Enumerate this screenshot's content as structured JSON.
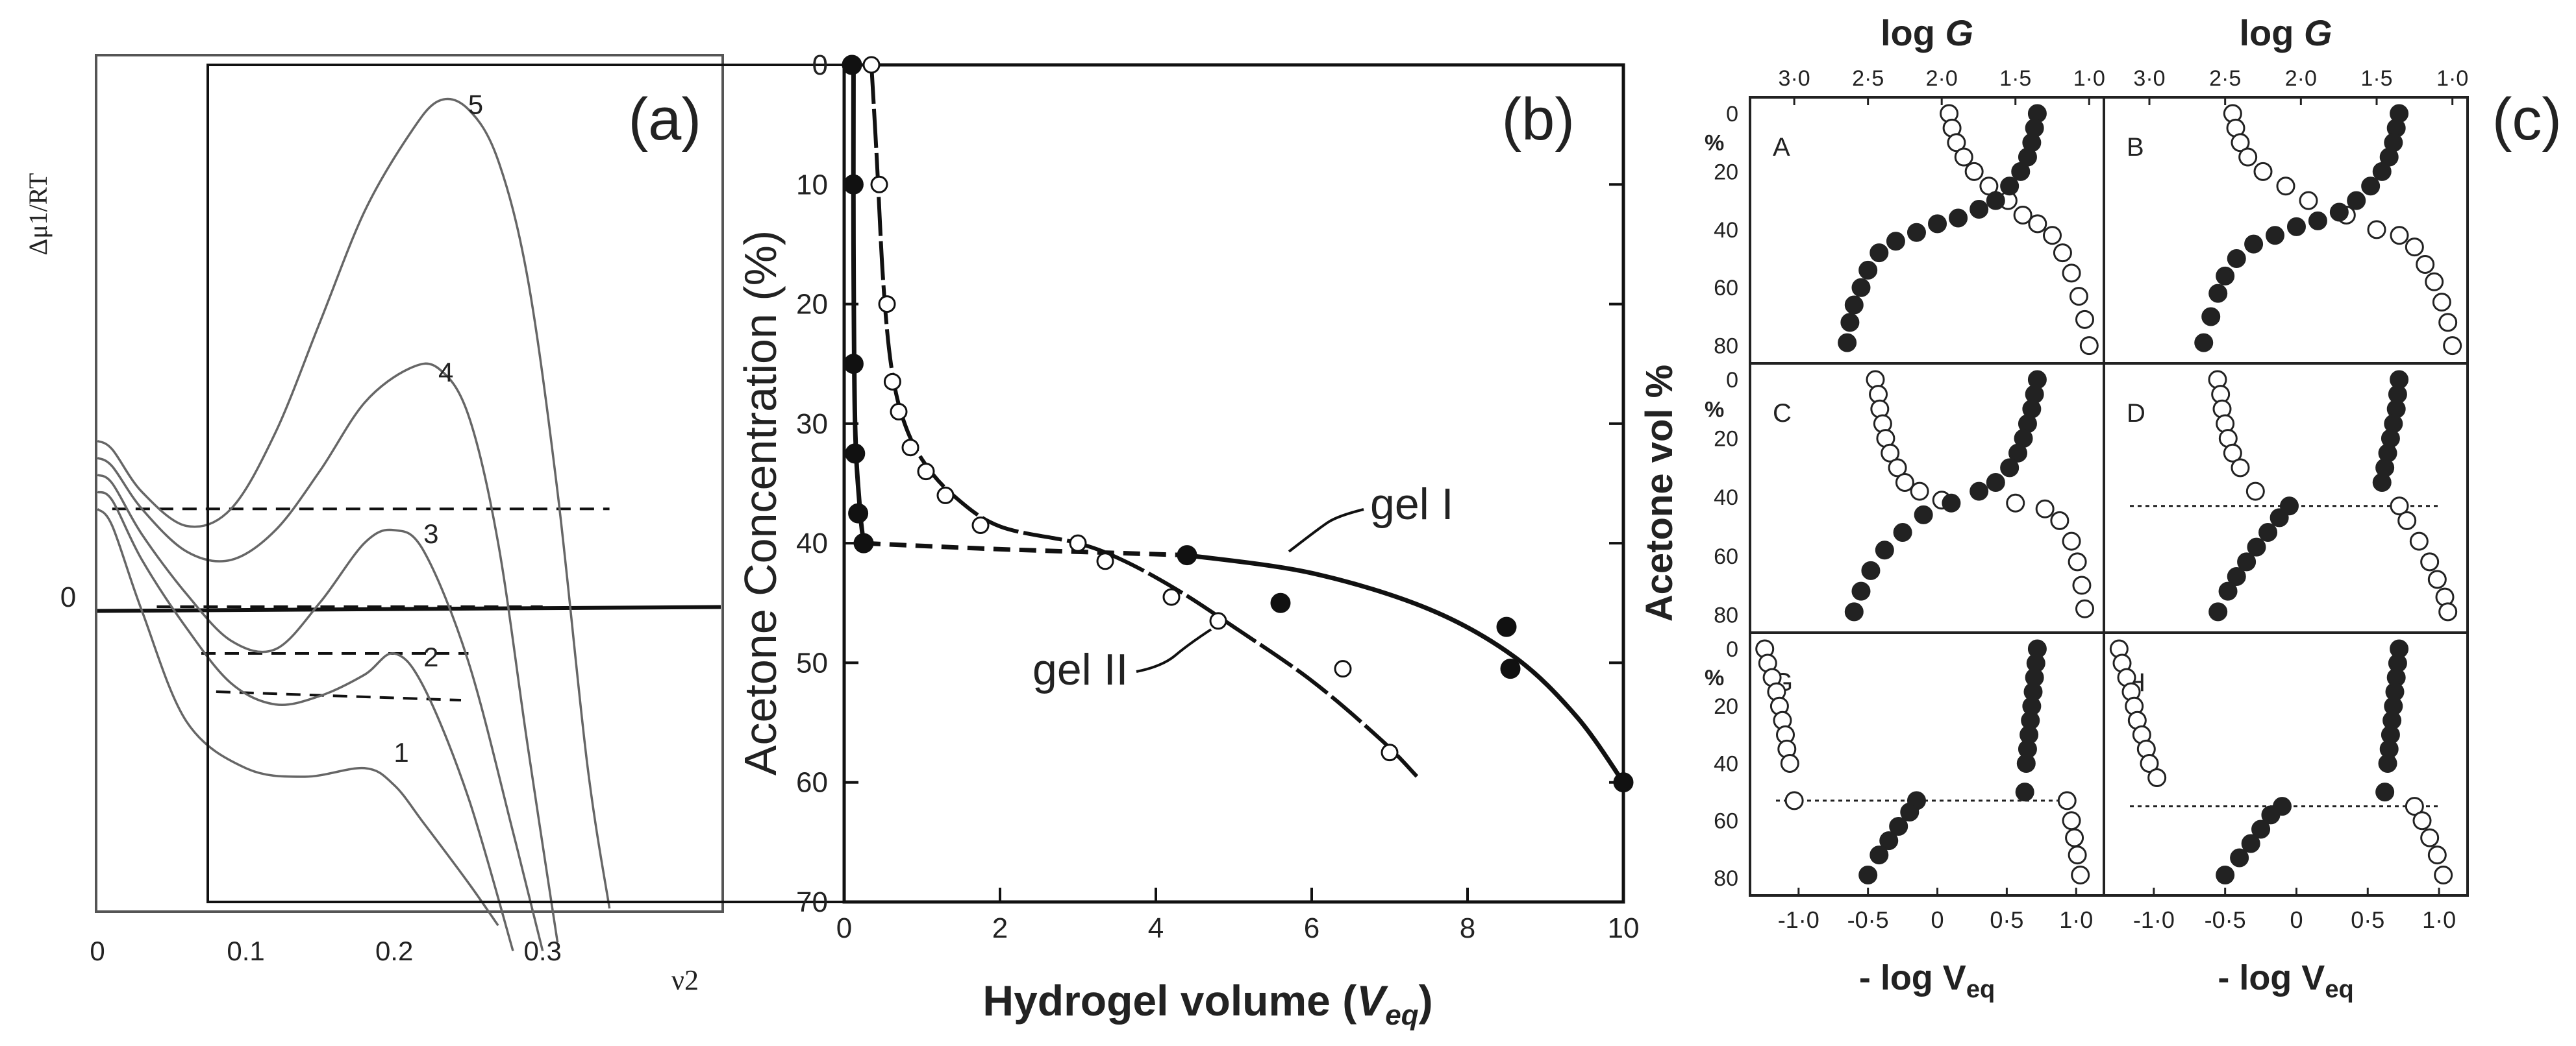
{
  "chart_data": [
    {
      "panel_label": "(a)",
      "type": "line",
      "ylabel": "Δμ1/RT",
      "xlabel": "ν2",
      "x_ticks": [
        "0",
        "0.1",
        "0.2",
        "0.3"
      ],
      "x_tick_values": [
        0,
        0.1,
        0.2,
        0.3
      ],
      "y_ticks": [
        "0"
      ],
      "xlim": [
        0,
        0.42
      ],
      "ylim": [
        -3.5,
        6.5
      ],
      "zero_line": true,
      "series": [
        {
          "name": "1",
          "x": [
            0,
            0.01,
            0.03,
            0.06,
            0.1,
            0.14,
            0.18,
            0.2,
            0.22,
            0.25,
            0.27
          ],
          "y": [
            1.2,
            1.0,
            0.0,
            -1.3,
            -1.85,
            -1.95,
            -1.85,
            -2.05,
            -2.5,
            -3.2,
            -3.7
          ]
        },
        {
          "name": "2",
          "x": [
            0,
            0.01,
            0.03,
            0.06,
            0.09,
            0.12,
            0.15,
            0.18,
            0.2,
            0.22,
            0.25,
            0.28
          ],
          "y": [
            1.4,
            1.3,
            0.6,
            -0.2,
            -0.85,
            -1.1,
            -1.0,
            -0.75,
            -0.5,
            -0.9,
            -2.2,
            -4.0
          ]
        },
        {
          "name": "3",
          "x": [
            0,
            0.01,
            0.03,
            0.06,
            0.09,
            0.12,
            0.15,
            0.18,
            0.2,
            0.22,
            0.25,
            0.28,
            0.3
          ],
          "y": [
            1.6,
            1.5,
            0.9,
            0.2,
            -0.35,
            -0.45,
            0.1,
            0.8,
            0.95,
            0.7,
            -0.6,
            -2.6,
            -4.0
          ]
        },
        {
          "name": "4",
          "x": [
            0,
            0.01,
            0.03,
            0.06,
            0.09,
            0.12,
            0.15,
            0.18,
            0.21,
            0.23,
            0.25,
            0.27,
            0.29,
            0.31
          ],
          "y": [
            1.8,
            1.7,
            1.2,
            0.7,
            0.6,
            0.95,
            1.65,
            2.45,
            2.85,
            2.85,
            2.3,
            0.8,
            -1.6,
            -3.9
          ]
        },
        {
          "name": "5",
          "x": [
            0,
            0.01,
            0.03,
            0.06,
            0.09,
            0.12,
            0.15,
            0.18,
            0.21,
            0.23,
            0.25,
            0.27,
            0.29,
            0.31,
            0.33,
            0.345
          ],
          "y": [
            2.0,
            1.9,
            1.4,
            1.0,
            1.2,
            2.1,
            3.4,
            4.7,
            5.6,
            6.0,
            5.9,
            5.3,
            3.9,
            1.4,
            -1.8,
            -3.5
          ]
        }
      ],
      "tie_lines": [
        {
          "x": [
            0.01,
            0.345
          ],
          "y": [
            1.2,
            1.2
          ]
        },
        {
          "x": [
            0.04,
            0.3
          ],
          "y": [
            0.05,
            0.05
          ]
        },
        {
          "x": [
            0.07,
            0.25
          ],
          "y": [
            -0.5,
            -0.5
          ]
        },
        {
          "x": [
            0.08,
            0.245
          ],
          "y": [
            -0.95,
            -1.05
          ]
        }
      ]
    },
    {
      "panel_label": "(b)",
      "type": "scatter",
      "xlabel": "Hydrogel volume (Veq)",
      "ylabel": "Acetone  Concentration (%)",
      "xlim": [
        0,
        10
      ],
      "ylim": [
        0,
        70
      ],
      "y_inverted": true,
      "x_ticks": [
        "0",
        "2",
        "4",
        "6",
        "8",
        "10"
      ],
      "y_ticks": [
        "0",
        "10",
        "20",
        "30",
        "40",
        "50",
        "60",
        "70"
      ],
      "annotations": [
        "gel I",
        "gel II"
      ],
      "series": [
        {
          "name": "gel I",
          "marker": "filled",
          "x": [
            0.1,
            0.12,
            0.12,
            0.14,
            0.18,
            0.25,
            4.4,
            5.6,
            8.5,
            8.55,
            10.0
          ],
          "y": [
            0,
            10,
            25,
            32.5,
            37.5,
            40,
            41,
            45,
            47,
            50.5,
            60
          ]
        },
        {
          "name": "gel II",
          "marker": "open",
          "x": [
            0.35,
            0.45,
            0.55,
            0.62,
            0.7,
            0.85,
            1.05,
            1.3,
            1.75,
            3.0,
            3.35,
            4.2,
            4.8,
            6.4,
            7.0
          ],
          "y": [
            0,
            10,
            20,
            26.5,
            29,
            32,
            34,
            36,
            38.5,
            40,
            41.5,
            44.5,
            46.5,
            50.5,
            57.5
          ]
        }
      ],
      "fit_curves": [
        {
          "name": "gel I",
          "x": [
            0.12,
            0.12,
            0.14,
            0.2,
            0.25,
            2.0,
            4.4,
            6.0,
            7.5,
            8.6,
            9.4,
            10.0
          ],
          "y": [
            0,
            15,
            30,
            37,
            40,
            40.5,
            41,
            42.5,
            45.5,
            49.5,
            54.5,
            60
          ],
          "dashed_until_x": 4.4
        },
        {
          "name": "gel II",
          "x": [
            0.35,
            0.42,
            0.5,
            0.6,
            0.75,
            1.0,
            1.4,
            2.0,
            3.0,
            3.6,
            4.3,
            5.0,
            6.0,
            6.9,
            7.35
          ],
          "y": [
            0,
            8,
            18,
            25,
            29.5,
            33,
            36,
            38.6,
            40,
            41.5,
            44,
            47,
            51.5,
            56.5,
            59.5
          ]
        }
      ]
    },
    {
      "panel_label": "(c)",
      "type": "scatter",
      "top_axis_label": "log G",
      "top_ticks": [
        "3·0",
        "2·5",
        "2·0",
        "1·5",
        "1·0"
      ],
      "bottom_axis_label": "- log Veq",
      "bottom_ticks": [
        "-1·0",
        "-0·5",
        "0",
        "0·5",
        "1·0"
      ],
      "ylabel": "Acetone  vol %",
      "y_unit_mark": "%",
      "y_ticks": [
        "0",
        "20",
        "40",
        "60",
        "80"
      ],
      "ylim": [
        0,
        85
      ],
      "subplots": [
        {
          "label": "A",
          "tie_line": null,
          "open_logG": {
            "x": [
              1.95,
              1.93,
              1.9,
              1.85,
              1.78,
              1.68,
              1.55,
              1.45,
              1.35,
              1.25,
              1.18,
              1.12,
              1.07,
              1.03,
              1.0
            ],
            "y": [
              0,
              5,
              10,
              15,
              20,
              25,
              30,
              35,
              38,
              42,
              48,
              55,
              63,
              71,
              80
            ]
          },
          "filled_logVeq": {
            "x": [
              0.72,
              0.7,
              0.68,
              0.65,
              0.6,
              0.52,
              0.42,
              0.3,
              0.15,
              0.0,
              -0.15,
              -0.3,
              -0.42,
              -0.5,
              -0.55,
              -0.6,
              -0.63,
              -0.65
            ],
            "y": [
              0,
              5,
              10,
              15,
              20,
              25,
              30,
              33,
              36,
              38,
              41,
              44,
              48,
              54,
              60,
              66,
              72,
              79
            ]
          }
        },
        {
          "label": "B",
          "tie_line": null,
          "open_logG": {
            "x": [
              2.45,
              2.43,
              2.4,
              2.35,
              2.25,
              2.1,
              1.95,
              1.7,
              1.5,
              1.35,
              1.25,
              1.18,
              1.12,
              1.07,
              1.03,
              1.0
            ],
            "y": [
              0,
              5,
              10,
              15,
              20,
              25,
              30,
              35,
              40,
              42,
              46,
              52,
              58,
              65,
              72,
              80
            ]
          },
          "filled_logVeq": {
            "x": [
              0.72,
              0.7,
              0.68,
              0.65,
              0.6,
              0.52,
              0.42,
              0.3,
              0.15,
              0.0,
              -0.15,
              -0.3,
              -0.42,
              -0.5,
              -0.55,
              -0.6,
              -0.65
            ],
            "y": [
              0,
              5,
              10,
              15,
              20,
              25,
              30,
              34,
              37,
              39,
              42,
              45,
              50,
              56,
              62,
              70,
              79
            ]
          }
        },
        {
          "label": "C",
          "tie_line": null,
          "open_logG": {
            "x": [
              2.45,
              2.43,
              2.42,
              2.4,
              2.38,
              2.35,
              2.3,
              2.25,
              2.15,
              2.0,
              1.5,
              1.3,
              1.2,
              1.12,
              1.08,
              1.05,
              1.03
            ],
            "y": [
              0,
              5,
              10,
              15,
              20,
              25,
              30,
              35,
              38,
              41,
              42,
              44,
              48,
              55,
              62,
              70,
              78
            ]
          },
          "filled_logVeq": {
            "x": [
              0.72,
              0.7,
              0.68,
              0.65,
              0.62,
              0.58,
              0.52,
              0.42,
              0.3,
              0.1,
              -0.1,
              -0.25,
              -0.38,
              -0.48,
              -0.55,
              -0.6
            ],
            "y": [
              0,
              5,
              10,
              15,
              20,
              25,
              30,
              35,
              38,
              42,
              46,
              52,
              58,
              65,
              72,
              79
            ]
          }
        },
        {
          "label": "D",
          "tie_line": {
            "y": 43
          },
          "open_logG": {
            "x": [
              2.55,
              2.53,
              2.52,
              2.5,
              2.48,
              2.45,
              2.4,
              2.3,
              1.35,
              1.3,
              1.22,
              1.15,
              1.1,
              1.05,
              1.03
            ],
            "y": [
              0,
              5,
              10,
              15,
              20,
              25,
              30,
              38,
              43,
              48,
              55,
              62,
              68,
              74,
              79
            ]
          },
          "filled_logVeq": {
            "x": [
              0.72,
              0.71,
              0.7,
              0.68,
              0.66,
              0.64,
              0.62,
              0.6,
              -0.05,
              -0.12,
              -0.2,
              -0.28,
              -0.35,
              -0.42,
              -0.48,
              -0.55
            ],
            "y": [
              0,
              5,
              10,
              15,
              20,
              25,
              30,
              35,
              43,
              47,
              52,
              57,
              62,
              67,
              72,
              79
            ]
          }
        },
        {
          "label": "G",
          "tie_line": {
            "y": 53
          },
          "open_logG": {
            "x": [
              3.2,
              3.18,
              3.15,
              3.12,
              3.1,
              3.08,
              3.06,
              3.05,
              3.03,
              3.0,
              1.15,
              1.12,
              1.1,
              1.08,
              1.06
            ],
            "y": [
              0,
              5,
              10,
              15,
              20,
              25,
              30,
              35,
              40,
              53,
              53,
              60,
              66,
              72,
              79
            ]
          },
          "filled_logVeq": {
            "x": [
              0.72,
              0.71,
              0.7,
              0.69,
              0.68,
              0.67,
              0.66,
              0.65,
              0.64,
              0.63,
              -0.15,
              -0.2,
              -0.28,
              -0.35,
              -0.42,
              -0.5
            ],
            "y": [
              0,
              5,
              10,
              15,
              20,
              25,
              30,
              35,
              40,
              50,
              53,
              57,
              62,
              67,
              72,
              79
            ]
          }
        },
        {
          "label": "H",
          "tie_line": {
            "y": 55
          },
          "open_logG": {
            "x": [
              3.2,
              3.18,
              3.15,
              3.12,
              3.1,
              3.08,
              3.05,
              3.02,
              3.0,
              2.95,
              1.25,
              1.2,
              1.15,
              1.1,
              1.06
            ],
            "y": [
              0,
              5,
              10,
              15,
              20,
              25,
              30,
              35,
              40,
              45,
              55,
              60,
              66,
              72,
              79
            ]
          },
          "filled_logVeq": {
            "x": [
              0.72,
              0.71,
              0.7,
              0.69,
              0.68,
              0.67,
              0.66,
              0.65,
              0.64,
              0.62,
              -0.1,
              -0.18,
              -0.25,
              -0.32,
              -0.4,
              -0.5
            ],
            "y": [
              0,
              5,
              10,
              15,
              20,
              25,
              30,
              35,
              40,
              50,
              55,
              58,
              63,
              68,
              73,
              79
            ]
          }
        }
      ]
    }
  ]
}
